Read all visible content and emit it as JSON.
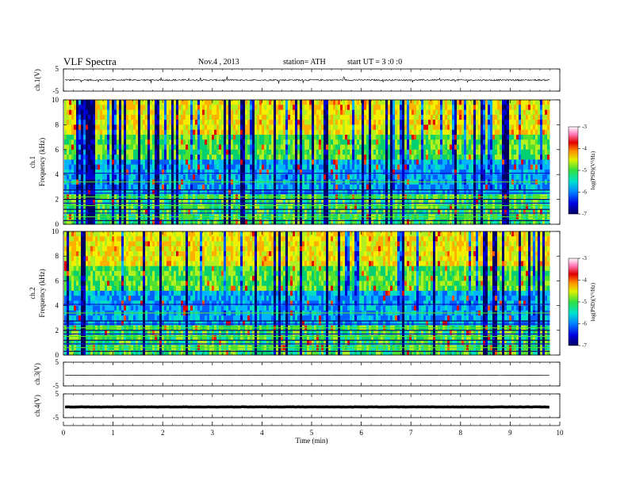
{
  "header": {
    "title": "VLF  Spectra",
    "date": "Nov.4  , 2013",
    "station": "station= ATH",
    "start": "start  UT  =   3  :0  :0"
  },
  "colors": {
    "spectrogram_palette": [
      "#000060",
      "#0000d0",
      "#0060ff",
      "#00b4ff",
      "#00e0c0",
      "#00d070",
      "#50e030",
      "#b0f020",
      "#f0f000",
      "#ffb000",
      "#ff5000",
      "#e00000",
      "#ff80c0",
      "#ffffff"
    ],
    "waveform": "#000000"
  },
  "chart_data": [
    {
      "type": "line",
      "panel": "ch1-waveform",
      "ylabel": "ch.1(V)",
      "ylim": [
        -5,
        5
      ],
      "yticks": [
        "5",
        "-5"
      ],
      "x_range_min": [
        0,
        9.8
      ],
      "description_level": "noisy signal around 0 V with spikes up to about ±2 V"
    },
    {
      "type": "heatmap",
      "panel": "ch1-spectrogram",
      "ylabel": "ch.1\nFrequency  (kHz)",
      "ylim": [
        0,
        10
      ],
      "yticks": [
        "0",
        "2",
        "4",
        "6",
        "8",
        "10"
      ],
      "x_range_min": [
        0,
        9.8
      ],
      "colorbar": {
        "label": "log(PSD)(V²/Hz)",
        "range": [
          -7,
          -3
        ],
        "ticks": [
          "-3",
          "-4",
          "-5",
          "-6",
          "-7"
        ]
      }
    },
    {
      "type": "heatmap",
      "panel": "ch2-spectrogram",
      "ylabel": "ch.2\nFrequency  (kHz)",
      "ylim": [
        0,
        10
      ],
      "yticks": [
        "0",
        "2",
        "4",
        "6",
        "8",
        "10"
      ],
      "x_range_min": [
        0,
        9.8
      ],
      "colorbar": {
        "label": "log(PSD)(V²/Hz)",
        "range": [
          -7,
          -3
        ],
        "ticks": [
          "-3",
          "-4",
          "-5",
          "-6",
          "-7"
        ]
      }
    },
    {
      "type": "line",
      "panel": "ch3-waveform",
      "ylabel": "ch.3(V)",
      "ylim": [
        -5,
        5
      ],
      "yticks": [
        "5",
        "-5"
      ],
      "x_range_min": [
        0,
        9.8
      ],
      "level": -0.5
    },
    {
      "type": "line",
      "panel": "ch4-waveform",
      "ylabel": "ch.4(V)",
      "ylim": [
        -5,
        5
      ],
      "yticks": [
        "5",
        "-5"
      ],
      "x_range_min": [
        0,
        9.8
      ],
      "level": -0.5
    }
  ],
  "xaxis": {
    "label": "Time  (min)",
    "ticks": [
      "0",
      "1",
      "2",
      "3",
      "4",
      "5",
      "6",
      "7",
      "8",
      "9",
      "10"
    ],
    "xlim": [
      0,
      10
    ]
  }
}
